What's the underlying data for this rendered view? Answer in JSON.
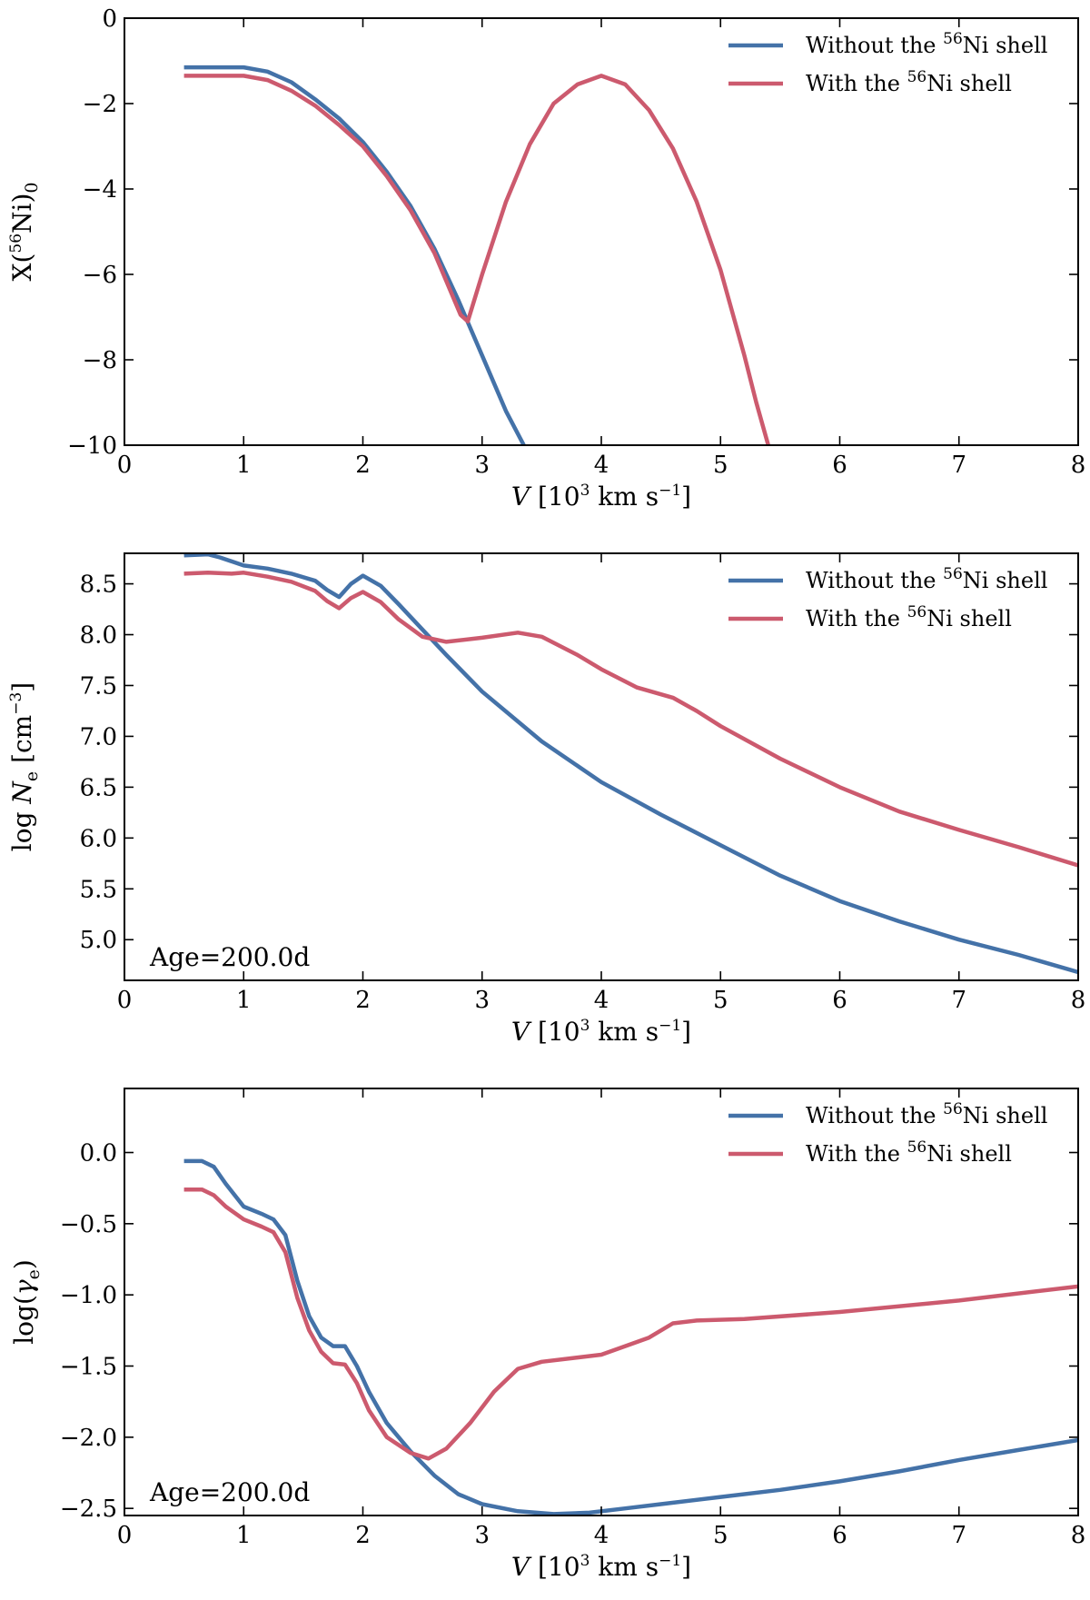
{
  "colors": {
    "without": "#4472a8",
    "with": "#cc5a6e"
  },
  "panels": [
    {
      "id": "top",
      "ylabel": {
        "pre": "X(",
        "sup": "56",
        "mid": "Ni)",
        "sub": "0",
        "post": ""
      },
      "xlabel": {
        "var": "V",
        "pre": "[10",
        "sup": "3",
        "mid": " km s",
        "sup2": "−1",
        "post": "]"
      },
      "xlim": [
        0,
        8
      ],
      "ylim": [
        -10,
        0
      ],
      "xticks": [
        0,
        1,
        2,
        3,
        4,
        5,
        6,
        7,
        8
      ],
      "yticks": [
        0,
        -2,
        -4,
        -6,
        -8,
        -10
      ],
      "ytick_labels": [
        "0",
        "−2",
        "−4",
        "−6",
        "−8",
        "−10"
      ],
      "annotation": "",
      "legend": [
        {
          "series": "without",
          "text_pre": "Without the ",
          "sup": "56",
          "text_post": "Ni shell"
        },
        {
          "series": "with",
          "text_pre": "With the ",
          "sup": "56",
          "text_post": "Ni shell"
        }
      ]
    },
    {
      "id": "middle",
      "ylabel": {
        "pre": "log ",
        "italic": "N",
        "sub": "e",
        "post": " [cm",
        "sup": "−3",
        "post2": "]"
      },
      "xlabel": {
        "var": "V",
        "pre": "[10",
        "sup": "3",
        "mid": " km s",
        "sup2": "−1",
        "post": "]"
      },
      "xlim": [
        0,
        8
      ],
      "ylim": [
        4.6,
        8.8
      ],
      "xticks": [
        0,
        1,
        2,
        3,
        4,
        5,
        6,
        7,
        8
      ],
      "yticks": [
        5.0,
        5.5,
        6.0,
        6.5,
        7.0,
        7.5,
        8.0,
        8.5
      ],
      "ytick_labels": [
        "5.0",
        "5.5",
        "6.0",
        "6.5",
        "7.0",
        "7.5",
        "8.0",
        "8.5"
      ],
      "annotation": "Age=200.0d",
      "legend": [
        {
          "series": "without",
          "text_pre": "Without the ",
          "sup": "56",
          "text_post": "Ni shell"
        },
        {
          "series": "with",
          "text_pre": "With the ",
          "sup": "56",
          "text_post": "Ni shell"
        }
      ]
    },
    {
      "id": "bottom",
      "ylabel": {
        "pre": "log(",
        "greek": "γ",
        "sub": "e",
        "post": ")"
      },
      "xlabel": {
        "var": "V",
        "pre": "[10",
        "sup": "3",
        "mid": " km s",
        "sup2": "−1",
        "post": "]"
      },
      "xlim": [
        0,
        8
      ],
      "ylim": [
        -2.55,
        0.45
      ],
      "xticks": [
        0,
        1,
        2,
        3,
        4,
        5,
        6,
        7,
        8
      ],
      "yticks": [
        0.0,
        -0.5,
        -1.0,
        -1.5,
        -2.0,
        -2.5
      ],
      "ytick_labels": [
        "0.0",
        "−0.5",
        "−1.0",
        "−1.5",
        "−2.0",
        "−2.5"
      ],
      "annotation": "Age=200.0d",
      "legend": [
        {
          "series": "without",
          "text_pre": "Without the ",
          "sup": "56",
          "text_post": "Ni shell"
        },
        {
          "series": "with",
          "text_pre": "With the ",
          "sup": "56",
          "text_post": "Ni shell"
        }
      ]
    }
  ],
  "chart_data": [
    {
      "type": "line",
      "xlabel": "V [10^3 km s^-1]",
      "ylabel": "X(56Ni)0",
      "xlim": [
        0,
        8
      ],
      "ylim": [
        -10,
        0
      ],
      "grid": false,
      "legend_position": "top-right",
      "series": [
        {
          "name": "Without the 56Ni shell",
          "key": "without",
          "x": [
            0.5,
            0.8,
            1.0,
            1.2,
            1.4,
            1.6,
            1.8,
            2.0,
            2.2,
            2.4,
            2.6,
            2.8,
            3.0,
            3.2,
            3.35
          ],
          "y": [
            -1.15,
            -1.15,
            -1.15,
            -1.25,
            -1.5,
            -1.9,
            -2.35,
            -2.9,
            -3.6,
            -4.4,
            -5.4,
            -6.6,
            -7.9,
            -9.2,
            -10.0
          ]
        },
        {
          "name": "With the 56Ni shell",
          "key": "with",
          "x": [
            0.5,
            0.8,
            1.0,
            1.2,
            1.4,
            1.6,
            1.8,
            2.0,
            2.2,
            2.4,
            2.6,
            2.82,
            2.88,
            3.0,
            3.2,
            3.4,
            3.6,
            3.8,
            4.0,
            4.2,
            4.4,
            4.6,
            4.8,
            5.0,
            5.2,
            5.3,
            5.4
          ],
          "y": [
            -1.35,
            -1.35,
            -1.35,
            -1.45,
            -1.7,
            -2.05,
            -2.5,
            -3.0,
            -3.7,
            -4.5,
            -5.5,
            -6.95,
            -7.1,
            -6.0,
            -4.3,
            -2.95,
            -2.0,
            -1.55,
            -1.35,
            -1.55,
            -2.15,
            -3.05,
            -4.3,
            -5.9,
            -7.9,
            -9.0,
            -10.0
          ]
        }
      ]
    },
    {
      "type": "line",
      "xlabel": "V [10^3 km s^-1]",
      "ylabel": "log Ne [cm^-3]",
      "xlim": [
        0,
        8
      ],
      "ylim": [
        4.6,
        8.8
      ],
      "grid": false,
      "legend_position": "top-right",
      "annotation": "Age=200.0d",
      "series": [
        {
          "name": "Without the 56Ni shell",
          "key": "without",
          "x": [
            0.5,
            0.7,
            0.8,
            1.0,
            1.2,
            1.4,
            1.6,
            1.7,
            1.8,
            1.9,
            2.0,
            2.15,
            2.3,
            2.5,
            2.7,
            3.0,
            3.5,
            4.0,
            4.5,
            5.0,
            5.5,
            6.0,
            6.5,
            7.0,
            7.5,
            8.0
          ],
          "y": [
            8.78,
            8.79,
            8.76,
            8.68,
            8.65,
            8.6,
            8.53,
            8.44,
            8.37,
            8.5,
            8.58,
            8.48,
            8.3,
            8.05,
            7.8,
            7.44,
            6.95,
            6.55,
            6.23,
            5.93,
            5.63,
            5.38,
            5.18,
            5.0,
            4.85,
            4.68
          ]
        },
        {
          "name": "With the 56Ni shell",
          "key": "with",
          "x": [
            0.5,
            0.7,
            0.9,
            1.0,
            1.2,
            1.4,
            1.6,
            1.7,
            1.8,
            1.9,
            2.0,
            2.15,
            2.3,
            2.5,
            2.7,
            3.0,
            3.3,
            3.5,
            3.8,
            4.0,
            4.3,
            4.6,
            4.8,
            5.0,
            5.5,
            6.0,
            6.5,
            7.0,
            7.5,
            8.0
          ],
          "y": [
            8.6,
            8.61,
            8.6,
            8.61,
            8.57,
            8.52,
            8.43,
            8.33,
            8.26,
            8.36,
            8.42,
            8.32,
            8.15,
            7.98,
            7.93,
            7.97,
            8.02,
            7.98,
            7.8,
            7.66,
            7.48,
            7.38,
            7.25,
            7.1,
            6.78,
            6.5,
            6.26,
            6.08,
            5.91,
            5.73
          ]
        }
      ]
    },
    {
      "type": "line",
      "xlabel": "V [10^3 km s^-1]",
      "ylabel": "log(γe)",
      "xlim": [
        0,
        8
      ],
      "ylim": [
        -2.55,
        0.45
      ],
      "grid": false,
      "legend_position": "top-right",
      "annotation": "Age=200.0d",
      "series": [
        {
          "name": "Without the 56Ni shell",
          "key": "without",
          "x": [
            0.5,
            0.65,
            0.75,
            0.85,
            1.0,
            1.15,
            1.25,
            1.35,
            1.45,
            1.55,
            1.65,
            1.75,
            1.85,
            1.95,
            2.05,
            2.2,
            2.4,
            2.6,
            2.8,
            3.0,
            3.3,
            3.6,
            3.9,
            4.2,
            4.5,
            5.0,
            5.5,
            6.0,
            6.5,
            7.0,
            7.5,
            8.0
          ],
          "y": [
            -0.06,
            -0.06,
            -0.1,
            -0.22,
            -0.38,
            -0.43,
            -0.47,
            -0.58,
            -0.9,
            -1.15,
            -1.3,
            -1.36,
            -1.36,
            -1.5,
            -1.68,
            -1.9,
            -2.1,
            -2.27,
            -2.4,
            -2.47,
            -2.52,
            -2.54,
            -2.53,
            -2.5,
            -2.47,
            -2.42,
            -2.37,
            -2.31,
            -2.24,
            -2.16,
            -2.09,
            -2.02
          ]
        },
        {
          "name": "With the 56Ni shell",
          "key": "with",
          "x": [
            0.5,
            0.65,
            0.75,
            0.85,
            1.0,
            1.15,
            1.25,
            1.35,
            1.45,
            1.55,
            1.65,
            1.75,
            1.85,
            1.95,
            2.05,
            2.2,
            2.4,
            2.55,
            2.7,
            2.9,
            3.1,
            3.3,
            3.5,
            3.8,
            4.0,
            4.2,
            4.4,
            4.6,
            4.8,
            5.2,
            6.0,
            7.0,
            8.0
          ],
          "y": [
            -0.26,
            -0.26,
            -0.3,
            -0.38,
            -0.47,
            -0.52,
            -0.56,
            -0.7,
            -1.02,
            -1.25,
            -1.4,
            -1.48,
            -1.49,
            -1.62,
            -1.81,
            -2.0,
            -2.11,
            -2.15,
            -2.08,
            -1.9,
            -1.68,
            -1.52,
            -1.47,
            -1.44,
            -1.42,
            -1.36,
            -1.3,
            -1.2,
            -1.18,
            -1.17,
            -1.12,
            -1.04,
            -0.94
          ]
        }
      ]
    }
  ]
}
